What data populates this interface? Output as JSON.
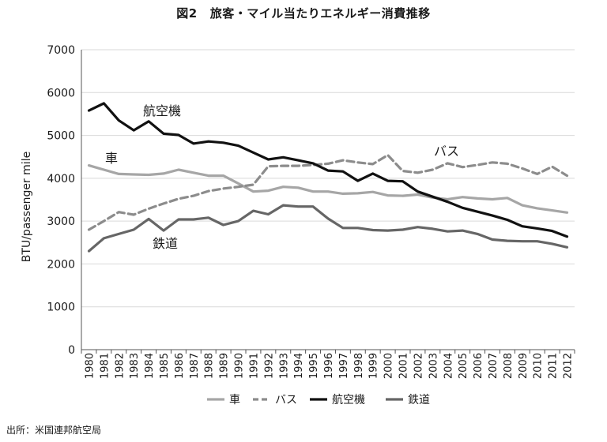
{
  "figure": {
    "number": "図2",
    "title": "旅客・マイル当たりエネルギー消費推移"
  },
  "source": "出所：米国連邦航空局",
  "chart_data": {
    "type": "line",
    "ylabel": "BTU/passenger mile",
    "ylim": [
      0,
      7000
    ],
    "yticks": [
      "0",
      "1000",
      "2000",
      "3000",
      "4000",
      "5000",
      "6000",
      "7000"
    ],
    "grid": true,
    "legend_position": "bottom",
    "categories": [
      "1980",
      "1981",
      "1982",
      "1983",
      "1984",
      "1985",
      "1986",
      "1987",
      "1988",
      "1989",
      "1990",
      "1991",
      "1992",
      "1993",
      "1994",
      "1995",
      "1996",
      "1997",
      "1998",
      "1999",
      "2000",
      "2001",
      "2002",
      "2003",
      "2004",
      "2005",
      "2006",
      "2007",
      "2008",
      "2009",
      "2010",
      "2011",
      "2012"
    ],
    "series": [
      {
        "name": "車",
        "color": "#a6a6a6",
        "dash": "solid",
        "values": [
          4300,
          4200,
          4100,
          4090,
          4080,
          4110,
          4200,
          4130,
          4060,
          4060,
          3880,
          3690,
          3710,
          3800,
          3780,
          3690,
          3690,
          3640,
          3650,
          3680,
          3600,
          3590,
          3620,
          3550,
          3510,
          3560,
          3530,
          3510,
          3540,
          3370,
          3300,
          3250,
          3200
        ]
      },
      {
        "name": "バス",
        "color": "#8c8c8c",
        "dash": "dashed",
        "values": [
          2800,
          3000,
          3210,
          3150,
          3290,
          3410,
          3520,
          3590,
          3700,
          3760,
          3800,
          3850,
          4280,
          4290,
          4290,
          4310,
          4340,
          4420,
          4370,
          4330,
          4540,
          4170,
          4130,
          4200,
          4350,
          4260,
          4310,
          4370,
          4340,
          4230,
          4100,
          4270,
          4060
        ]
      },
      {
        "name": "航空機",
        "color": "#111111",
        "dash": "solid",
        "values": [
          5580,
          5750,
          5350,
          5120,
          5330,
          5040,
          5010,
          4810,
          4860,
          4830,
          4760,
          4600,
          4440,
          4490,
          4420,
          4350,
          4180,
          4160,
          3940,
          4110,
          3940,
          3930,
          3690,
          3570,
          3450,
          3310,
          3220,
          3130,
          3030,
          2880,
          2830,
          2770,
          2640
        ]
      },
      {
        "name": "鉄道",
        "color": "#666666",
        "dash": "solid",
        "values": [
          2300,
          2600,
          2700,
          2800,
          3050,
          2780,
          3040,
          3040,
          3080,
          2910,
          3000,
          3240,
          3160,
          3370,
          3340,
          3340,
          3060,
          2840,
          2840,
          2790,
          2780,
          2800,
          2860,
          2820,
          2760,
          2780,
          2700,
          2570,
          2540,
          2530,
          2530,
          2470,
          2390
        ]
      }
    ],
    "annotations": [
      {
        "text": "航空機",
        "series": "航空機"
      },
      {
        "text": "車",
        "series": "車"
      },
      {
        "text": "バス",
        "series": "バス"
      },
      {
        "text": "鉄道",
        "series": "鉄道"
      }
    ]
  }
}
